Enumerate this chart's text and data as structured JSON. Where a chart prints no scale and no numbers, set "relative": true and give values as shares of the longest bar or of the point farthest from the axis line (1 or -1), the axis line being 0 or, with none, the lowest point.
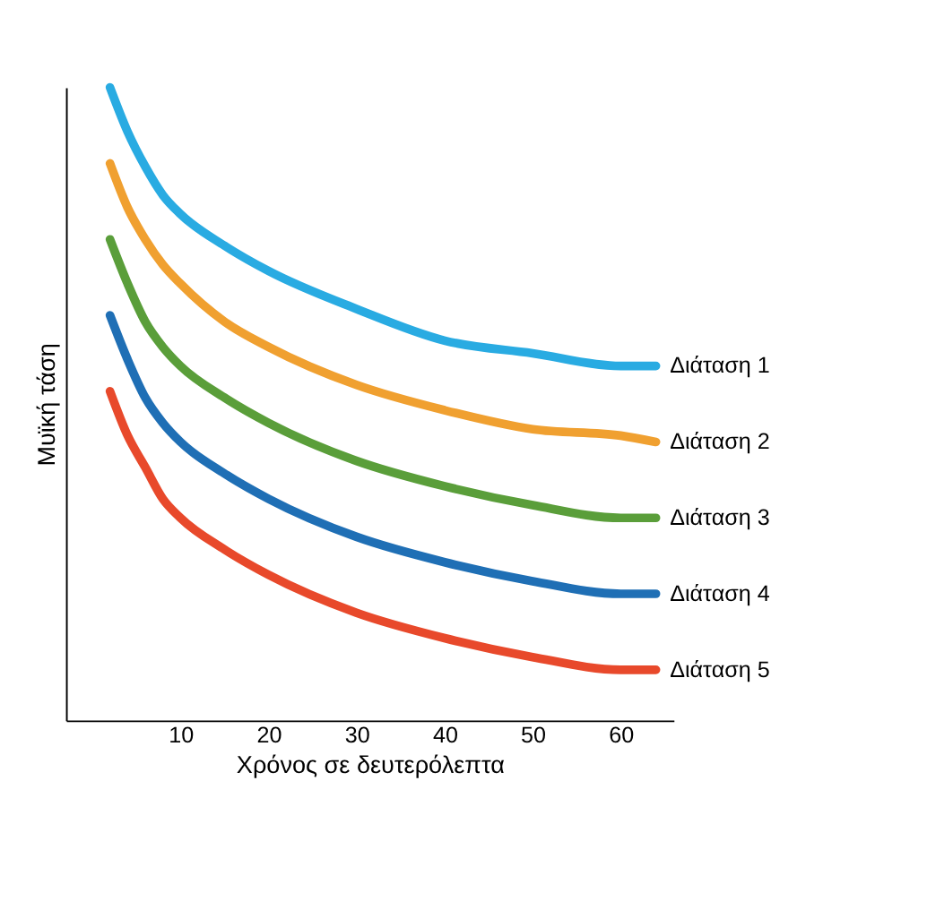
{
  "chart_data": {
    "type": "line",
    "relative": true,
    "xlabel": "Χρόνος σε δευτερόλεπτα",
    "ylabel": "Μυϊκή τάση",
    "x": [
      2,
      4,
      6,
      8,
      10,
      15,
      20,
      30,
      40,
      50,
      60,
      64
    ],
    "xlim": [
      -3,
      66
    ],
    "xticks": [
      10,
      20,
      30,
      40,
      50,
      60
    ],
    "grid": false,
    "marker": "none",
    "line_style": "solid",
    "series": [
      {
        "name": "Διάταση 1",
        "color": "#29abe2",
        "values": [
          1.0,
          0.93,
          0.875,
          0.83,
          0.8,
          0.75,
          0.71,
          0.65,
          0.6,
          0.58,
          0.56,
          0.56
        ]
      },
      {
        "name": "Διάταση 2",
        "color": "#f0a030",
        "values": [
          0.88,
          0.81,
          0.76,
          0.72,
          0.69,
          0.63,
          0.59,
          0.53,
          0.49,
          0.46,
          0.45,
          0.44
        ]
      },
      {
        "name": "Διάταση 3",
        "color": "#5a9e3a",
        "values": [
          0.76,
          0.69,
          0.63,
          0.59,
          0.56,
          0.51,
          0.47,
          0.41,
          0.37,
          0.34,
          0.32,
          0.32
        ]
      },
      {
        "name": "Διάταση 4",
        "color": "#1f6fb5",
        "values": [
          0.64,
          0.57,
          0.51,
          0.47,
          0.44,
          0.39,
          0.35,
          0.29,
          0.25,
          0.22,
          0.2,
          0.2
        ]
      },
      {
        "name": "Διάταση 5",
        "color": "#e8492b",
        "values": [
          0.52,
          0.45,
          0.4,
          0.35,
          0.32,
          0.27,
          0.23,
          0.17,
          0.13,
          0.1,
          0.08,
          0.08
        ]
      }
    ]
  }
}
